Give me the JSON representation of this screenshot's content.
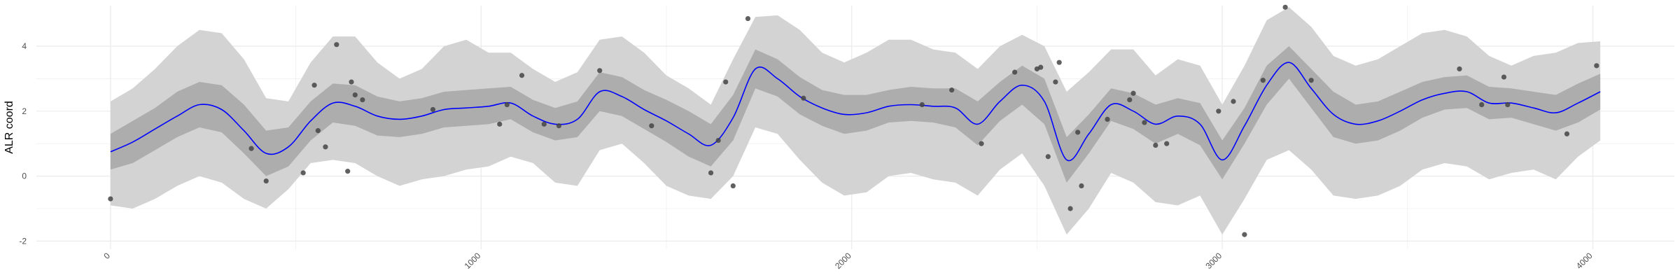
{
  "chart_data": {
    "type": "line",
    "title": "",
    "xlabel": "",
    "ylabel": "ALR coord",
    "xlim": [
      -200,
      4220
    ],
    "ylim": [
      -2.25,
      5.25
    ],
    "x_ticks": [
      0,
      1000,
      2000,
      3000,
      4000
    ],
    "x_tick_labels": [
      "0",
      "1000",
      "2000",
      "3000",
      "4000"
    ],
    "y_ticks": [
      -2,
      0,
      2,
      4
    ],
    "y_tick_labels": [
      "-2",
      "0",
      "2",
      "4"
    ],
    "grid": true,
    "legend": "none",
    "colors": {
      "outer_band": "#d3d3d3",
      "inner_band": "#adadad",
      "mean_line": "#0000ff",
      "points": "#444444",
      "grid": "#ebebeb"
    },
    "mean_curve": {
      "x": [
        0,
        60,
        120,
        180,
        240,
        300,
        360,
        420,
        480,
        540,
        600,
        660,
        720,
        780,
        840,
        900,
        960,
        1020,
        1080,
        1140,
        1200,
        1260,
        1320,
        1380,
        1440,
        1500,
        1560,
        1620,
        1680,
        1740,
        1800,
        1860,
        1920,
        1980,
        2040,
        2100,
        2160,
        2220,
        2280,
        2340,
        2400,
        2460,
        2520,
        2580,
        2640,
        2700,
        2760,
        2820,
        2880,
        2940,
        3000,
        3060,
        3120,
        3180,
        3240,
        3300,
        3360,
        3420,
        3480,
        3540,
        3600,
        3660,
        3720,
        3780,
        3840,
        3900,
        3960,
        4020
      ],
      "y": [
        0.75,
        1.05,
        1.45,
        1.85,
        2.2,
        2.05,
        1.4,
        0.7,
        0.9,
        1.7,
        2.25,
        2.15,
        1.85,
        1.75,
        1.85,
        2.05,
        2.1,
        2.15,
        2.25,
        1.85,
        1.6,
        1.75,
        2.6,
        2.45,
        2.05,
        1.7,
        1.3,
        0.95,
        1.8,
        3.3,
        3.0,
        2.45,
        2.1,
        1.9,
        1.95,
        2.15,
        2.2,
        2.15,
        2.1,
        1.6,
        2.3,
        2.8,
        2.3,
        0.5,
        1.3,
        2.2,
        2.0,
        1.6,
        1.85,
        1.6,
        0.5,
        1.55,
        2.8,
        3.5,
        2.7,
        1.9,
        1.6,
        1.7,
        2.0,
        2.35,
        2.55,
        2.6,
        2.25,
        2.25,
        2.1,
        1.95,
        2.25,
        2.6
      ]
    },
    "inner_band": {
      "upper": [
        1.3,
        1.7,
        2.1,
        2.6,
        2.9,
        2.8,
        2.2,
        1.4,
        1.5,
        2.3,
        2.85,
        2.8,
        2.45,
        2.3,
        2.4,
        2.6,
        2.65,
        2.7,
        2.75,
        2.35,
        2.1,
        2.3,
        3.2,
        3.05,
        2.65,
        2.35,
        2.0,
        1.6,
        2.5,
        3.9,
        3.6,
        3.05,
        2.65,
        2.5,
        2.5,
        2.65,
        2.75,
        2.7,
        2.7,
        2.3,
        2.9,
        3.4,
        3.0,
        1.2,
        1.9,
        2.7,
        2.55,
        2.2,
        2.4,
        2.25,
        1.1,
        2.1,
        3.4,
        4.0,
        3.3,
        2.6,
        2.2,
        2.3,
        2.6,
        2.9,
        3.05,
        3.1,
        2.75,
        2.7,
        2.6,
        2.5,
        2.85,
        3.15
      ],
      "lower": [
        0.2,
        0.4,
        0.8,
        1.2,
        1.5,
        1.35,
        0.7,
        0.0,
        0.3,
        1.1,
        1.65,
        1.55,
        1.25,
        1.2,
        1.3,
        1.5,
        1.55,
        1.6,
        1.75,
        1.35,
        1.1,
        1.2,
        2.0,
        1.85,
        1.45,
        1.05,
        0.6,
        0.3,
        1.1,
        2.7,
        2.45,
        1.9,
        1.55,
        1.3,
        1.4,
        1.65,
        1.7,
        1.65,
        1.5,
        0.95,
        1.7,
        2.2,
        1.6,
        -0.2,
        0.7,
        1.7,
        1.45,
        1.0,
        1.3,
        0.95,
        -0.1,
        1.0,
        2.2,
        3.0,
        2.1,
        1.2,
        1.0,
        1.1,
        1.4,
        1.8,
        2.05,
        2.1,
        1.75,
        1.8,
        1.6,
        1.4,
        1.65,
        2.05
      ]
    },
    "outer_band": {
      "upper": [
        2.3,
        2.7,
        3.3,
        4.0,
        4.5,
        4.4,
        3.6,
        2.4,
        2.3,
        3.5,
        4.3,
        4.3,
        3.5,
        3.0,
        3.3,
        4.0,
        4.2,
        3.8,
        3.8,
        3.3,
        2.9,
        3.2,
        4.2,
        4.3,
        3.8,
        3.1,
        2.7,
        2.2,
        3.6,
        4.9,
        4.95,
        4.5,
        3.8,
        3.5,
        3.8,
        4.2,
        4.2,
        3.9,
        3.8,
        3.3,
        4.0,
        4.35,
        4.0,
        2.6,
        3.2,
        3.9,
        3.9,
        3.1,
        3.6,
        3.4,
        2.2,
        3.4,
        4.8,
        5.2,
        4.6,
        3.7,
        3.4,
        3.6,
        4.0,
        4.4,
        4.5,
        4.3,
        3.7,
        3.4,
        3.7,
        3.8,
        4.1,
        4.15
      ],
      "lower": [
        -0.9,
        -1.0,
        -0.7,
        -0.3,
        0.0,
        -0.2,
        -0.7,
        -1.0,
        -0.4,
        0.4,
        0.5,
        0.4,
        0.0,
        -0.3,
        -0.1,
        0.0,
        0.2,
        0.3,
        0.6,
        0.4,
        -0.2,
        -0.3,
        0.8,
        1.0,
        0.4,
        -0.3,
        -0.6,
        -0.7,
        0.0,
        1.5,
        1.3,
        0.5,
        -0.2,
        -0.6,
        -0.5,
        0.0,
        0.1,
        -0.1,
        -0.2,
        -0.6,
        0.2,
        0.7,
        -0.3,
        -1.8,
        -1.0,
        0.1,
        -0.2,
        -0.8,
        -0.9,
        -0.6,
        -1.8,
        -0.7,
        0.5,
        0.8,
        0.2,
        -0.6,
        -0.7,
        -0.6,
        -0.3,
        0.2,
        0.4,
        0.3,
        -0.1,
        0.1,
        0.2,
        -0.1,
        0.6,
        1.1
      ]
    },
    "points": {
      "x": [
        0,
        380,
        420,
        520,
        550,
        560,
        580,
        610,
        640,
        650,
        660,
        680,
        870,
        1050,
        1070,
        1110,
        1170,
        1210,
        1320,
        1460,
        1620,
        1640,
        1660,
        1680,
        1720,
        1870,
        2190,
        2270,
        2350,
        2440,
        2500,
        2510,
        2530,
        2550,
        2560,
        2590,
        2610,
        2620,
        2690,
        2750,
        2760,
        2790,
        2820,
        2850,
        2990,
        3030,
        3060,
        3110,
        3170,
        3240,
        3640,
        3700,
        3760,
        3770,
        3930,
        4010
      ],
      "y": [
        -0.7,
        0.85,
        -0.15,
        0.1,
        2.8,
        1.4,
        0.9,
        4.05,
        0.15,
        2.9,
        2.5,
        2.35,
        2.05,
        1.6,
        2.2,
        3.1,
        1.6,
        1.55,
        3.25,
        1.55,
        0.1,
        1.1,
        2.9,
        -0.3,
        4.85,
        2.4,
        2.2,
        2.65,
        1.0,
        3.2,
        3.3,
        3.35,
        0.6,
        2.9,
        3.5,
        -1.0,
        1.35,
        -0.3,
        1.75,
        2.35,
        2.55,
        1.65,
        0.95,
        1.0,
        2.0,
        2.3,
        -1.8,
        2.95,
        5.2,
        2.95,
        3.3,
        2.2,
        3.05,
        2.2,
        1.3,
        3.4
      ]
    }
  }
}
